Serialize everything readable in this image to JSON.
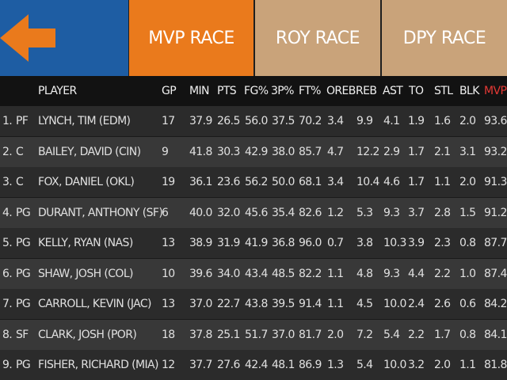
{
  "tabs": {
    "mvp": "MVP RACE",
    "roy": "ROY RACE",
    "dpy": "DPY RACE"
  },
  "colors": {
    "back_bg": "#1e5da3",
    "arrow": "#ea7a1c",
    "active_tab": "#ea7a1c",
    "inactive_tab": "#c9a37a",
    "mvp_header": "#e53935"
  },
  "icons": {
    "back": "arrow-left-icon"
  },
  "columns": [
    "PLAYER",
    "GP",
    "MIN",
    "PTS",
    "FG%",
    "3P%",
    "FT%",
    "OREB",
    "REB",
    "AST",
    "TO",
    "STL",
    "BLK",
    "MVP"
  ],
  "rows": [
    {
      "rank": "1.",
      "pos": "PF",
      "player": "LYNCH, TIM (EDM)",
      "gp": "17",
      "min": "37.9",
      "pts": "26.5",
      "fg": "56.0",
      "tp": "37.5",
      "ft": "70.2",
      "oreb": "3.4",
      "reb": "9.9",
      "ast": "4.1",
      "to": "1.9",
      "stl": "1.6",
      "blk": "2.0",
      "mvp": "93.6"
    },
    {
      "rank": "2.",
      "pos": "C",
      "player": "BAILEY, DAVID (CIN)",
      "gp": "9",
      "min": "41.8",
      "pts": "30.3",
      "fg": "42.9",
      "tp": "38.0",
      "ft": "85.7",
      "oreb": "4.7",
      "reb": "12.2",
      "ast": "2.9",
      "to": "1.7",
      "stl": "2.1",
      "blk": "3.1",
      "mvp": "93.2"
    },
    {
      "rank": "3.",
      "pos": "C",
      "player": "FOX, DANIEL (OKL)",
      "gp": "19",
      "min": "36.1",
      "pts": "23.6",
      "fg": "56.2",
      "tp": "50.0",
      "ft": "68.1",
      "oreb": "3.4",
      "reb": "10.4",
      "ast": "4.6",
      "to": "1.7",
      "stl": "1.1",
      "blk": "2.0",
      "mvp": "91.3"
    },
    {
      "rank": "4.",
      "pos": "PG",
      "player": "DURANT, ANTHONY (SF)",
      "gp": "6",
      "min": "40.0",
      "pts": "32.0",
      "fg": "45.6",
      "tp": "35.4",
      "ft": "82.6",
      "oreb": "1.2",
      "reb": "5.3",
      "ast": "9.3",
      "to": "3.7",
      "stl": "2.8",
      "blk": "1.5",
      "mvp": "91.2"
    },
    {
      "rank": "5.",
      "pos": "PG",
      "player": "KELLY, RYAN (NAS)",
      "gp": "13",
      "min": "38.9",
      "pts": "31.9",
      "fg": "41.9",
      "tp": "36.8",
      "ft": "96.0",
      "oreb": "0.7",
      "reb": "3.8",
      "ast": "10.3",
      "to": "3.9",
      "stl": "2.3",
      "blk": "0.8",
      "mvp": "87.7"
    },
    {
      "rank": "6.",
      "pos": "PG",
      "player": "SHAW, JOSH (COL)",
      "gp": "10",
      "min": "39.6",
      "pts": "34.0",
      "fg": "43.4",
      "tp": "48.5",
      "ft": "82.2",
      "oreb": "1.1",
      "reb": "4.8",
      "ast": "9.3",
      "to": "4.4",
      "stl": "2.2",
      "blk": "1.0",
      "mvp": "87.4"
    },
    {
      "rank": "7.",
      "pos": "PG",
      "player": "CARROLL, KEVIN (JAC)",
      "gp": "13",
      "min": "37.0",
      "pts": "22.7",
      "fg": "43.8",
      "tp": "39.5",
      "ft": "91.4",
      "oreb": "1.1",
      "reb": "4.5",
      "ast": "10.0",
      "to": "2.4",
      "stl": "2.6",
      "blk": "0.6",
      "mvp": "84.2"
    },
    {
      "rank": "8.",
      "pos": "SF",
      "player": "CLARK, JOSH (POR)",
      "gp": "18",
      "min": "37.8",
      "pts": "25.1",
      "fg": "51.7",
      "tp": "37.0",
      "ft": "81.7",
      "oreb": "2.0",
      "reb": "7.2",
      "ast": "5.4",
      "to": "2.2",
      "stl": "1.7",
      "blk": "0.8",
      "mvp": "84.1"
    },
    {
      "rank": "9.",
      "pos": "PG",
      "player": "FISHER, RICHARD (MIA)",
      "gp": "12",
      "min": "37.7",
      "pts": "27.6",
      "fg": "42.4",
      "tp": "48.1",
      "ft": "86.9",
      "oreb": "1.3",
      "reb": "5.4",
      "ast": "10.0",
      "to": "3.2",
      "stl": "2.0",
      "blk": "1.1",
      "mvp": "81.8"
    }
  ]
}
